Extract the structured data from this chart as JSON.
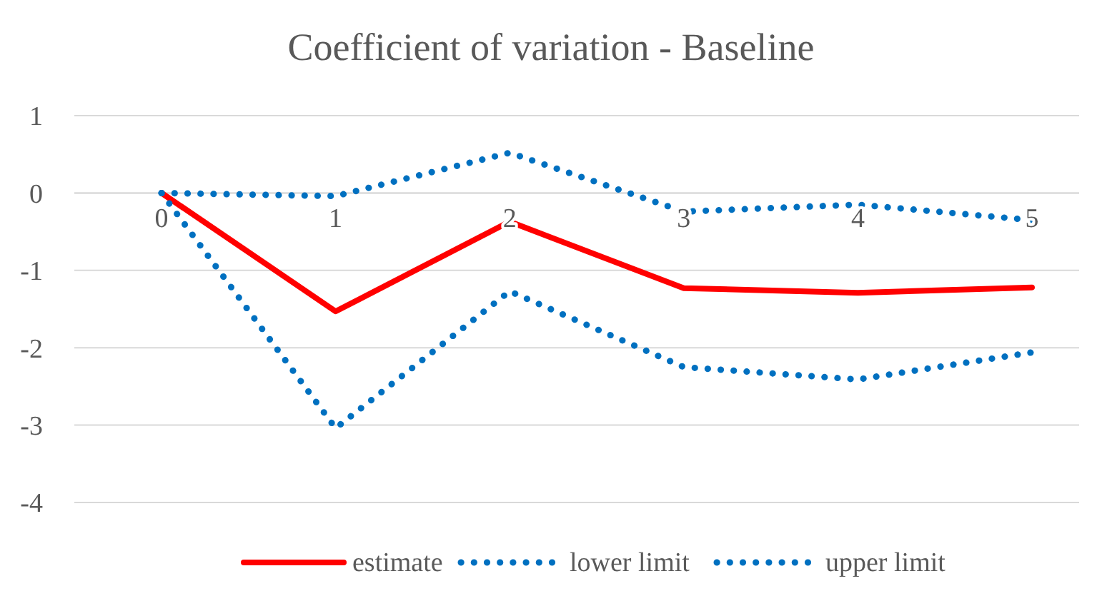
{
  "chart_data": {
    "type": "line",
    "title": "Coefficient of variation - Baseline",
    "categories": [
      "0",
      "1",
      "2",
      "3",
      "4",
      "5"
    ],
    "series": [
      {
        "name": "estimate",
        "color": "#ff0000",
        "line_style": "solid",
        "values": [
          0,
          -1.53,
          -0.37,
          -1.23,
          -1.29,
          -1.22
        ]
      },
      {
        "name": "lower limit",
        "color": "#0070c0",
        "line_style": "dotted",
        "values": [
          0,
          -3.04,
          -1.27,
          -2.25,
          -2.41,
          -2.06
        ]
      },
      {
        "name": "upper limit",
        "color": "#0070c0",
        "line_style": "dotted",
        "values": [
          0,
          -0.04,
          0.52,
          -0.24,
          -0.15,
          -0.35
        ]
      }
    ],
    "ylim": [
      -4,
      1
    ],
    "yticks": [
      -4,
      -3,
      -2,
      -1,
      0,
      1
    ],
    "grid": "y",
    "legend": "bottom",
    "marker": "none"
  }
}
